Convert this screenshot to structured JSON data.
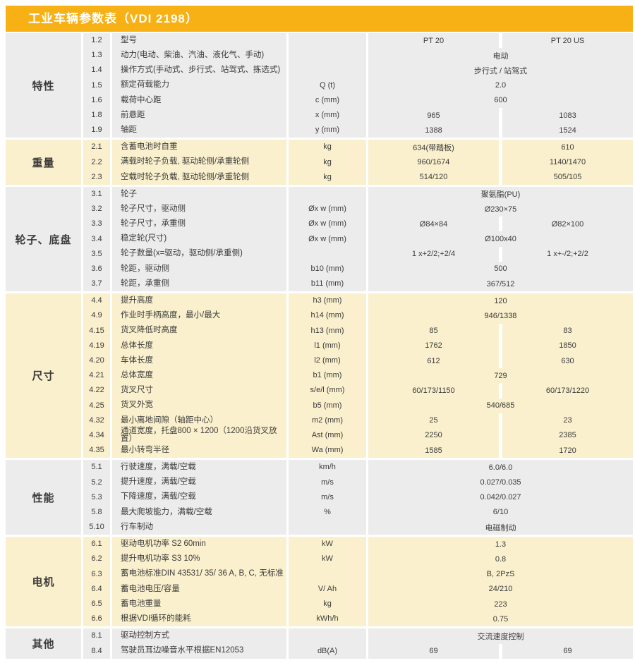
{
  "header": {
    "title": "工业车辆参数表（VDI 2198）"
  },
  "colors": {
    "accent": "#F8B115",
    "section_gray": "#ECECEC",
    "section_cream": "#FAF0CD",
    "text": "#3B3B3B"
  },
  "models": [
    "PT 20",
    "PT 20 US"
  ],
  "sections": [
    {
      "id": "texing",
      "label": "特性",
      "theme": "gray",
      "rows": [
        {
          "no": "1.2",
          "desc": "型号",
          "unit": "",
          "values": [
            "PT 20",
            "PT 20 US"
          ]
        },
        {
          "no": "1.3",
          "desc": "动力(电动、柴油、汽油、液化气、手动)",
          "unit": "",
          "span": "电动"
        },
        {
          "no": "1.4",
          "desc": "操作方式(手动式、步行式、站驾式、拣选式)",
          "unit": "",
          "span": "步行式 / 站驾式"
        },
        {
          "no": "1.5",
          "desc": "额定荷载能力",
          "unit": "Q (t)",
          "span": "2.0"
        },
        {
          "no": "1.6",
          "desc": "载荷中心距",
          "unit": "c (mm)",
          "span": "600"
        },
        {
          "no": "1.8",
          "desc": "前悬距",
          "unit": "x (mm)",
          "values": [
            "965",
            "1083"
          ]
        },
        {
          "no": "1.9",
          "desc": "轴距",
          "unit": "y (mm)",
          "values": [
            "1388",
            "1524"
          ]
        }
      ]
    },
    {
      "id": "zhongliang",
      "label": "重量",
      "theme": "cream",
      "rows": [
        {
          "no": "2.1",
          "desc": "含蓄电池时自重",
          "unit": "kg",
          "values": [
            "634(带踏板)",
            "610"
          ]
        },
        {
          "no": "2.2",
          "desc": "满载时轮子负载, 驱动轮侧/承重轮侧",
          "unit": "kg",
          "values": [
            "960/1674",
            "1140/1470"
          ]
        },
        {
          "no": "2.3",
          "desc": "空载时轮子负载, 驱动轮侧/承重轮侧",
          "unit": "kg",
          "values": [
            "514/120",
            "505/105"
          ]
        }
      ]
    },
    {
      "id": "lunzi-dipan",
      "label": "轮子、底盘",
      "theme": "gray",
      "rows": [
        {
          "no": "3.1",
          "desc": "轮子",
          "unit": "",
          "span": "聚氨酯(PU)"
        },
        {
          "no": "3.2",
          "desc": "轮子尺寸，驱动侧",
          "unit": "Øx w (mm)",
          "span": "Ø230×75"
        },
        {
          "no": "3.3",
          "desc": "轮子尺寸，承重侧",
          "unit": "Øx w (mm)",
          "values": [
            "Ø84×84",
            "Ø82×100"
          ]
        },
        {
          "no": "3.4",
          "desc": "稳定轮(尺寸)",
          "unit": "Øx w (mm)",
          "span": "Ø100x40"
        },
        {
          "no": "3.5",
          "desc": "轮子数量(x=驱动，驱动侧/承重侧)",
          "unit": "",
          "values": [
            "1 x+2/2;+2/4",
            "1 x+-/2;+2/2"
          ]
        },
        {
          "no": "3.6",
          "desc": "轮距，驱动侧",
          "unit": "b10 (mm)",
          "span": "500"
        },
        {
          "no": "3.7",
          "desc": "轮距，承重侧",
          "unit": "b11 (mm)",
          "span": "367/512"
        }
      ]
    },
    {
      "id": "chicun",
      "label": "尺寸",
      "theme": "cream",
      "rows": [
        {
          "no": "4.4",
          "desc": "提升高度",
          "unit": "h3 (mm)",
          "span": "120"
        },
        {
          "no": "4.9",
          "desc": "作业时手柄高度，最小/最大",
          "unit": "h14 (mm)",
          "span": "946/1338"
        },
        {
          "no": "4.15",
          "desc": "货叉降低时高度",
          "unit": "h13 (mm)",
          "values": [
            "85",
            "83"
          ]
        },
        {
          "no": "4.19",
          "desc": "总体长度",
          "unit": "l1 (mm)",
          "values": [
            "1762",
            "1850"
          ]
        },
        {
          "no": "4.20",
          "desc": "车体长度",
          "unit": "l2 (mm)",
          "values": [
            "612",
            "630"
          ]
        },
        {
          "no": "4.21",
          "desc": "总体宽度",
          "unit": "b1 (mm)",
          "span": "729"
        },
        {
          "no": "4.22",
          "desc": "货叉尺寸",
          "unit": "s/e/l (mm)",
          "values": [
            "60/173/1150",
            "60/173/1220"
          ]
        },
        {
          "no": "4.25",
          "desc": "货叉外宽",
          "unit": "b5 (mm)",
          "span": "540/685"
        },
        {
          "no": "4.32",
          "desc": "最小离地间隙（轴距中心）",
          "unit": "m2 (mm)",
          "values": [
            "25",
            "23"
          ]
        },
        {
          "no": "4.34",
          "desc": "通道宽度，托盘800 × 1200（1200沿货叉放置）",
          "unit": "Ast (mm)",
          "values": [
            "2250",
            "2385"
          ]
        },
        {
          "no": "4.35",
          "desc": "最小转弯半径",
          "unit": "Wa (mm)",
          "values": [
            "1585",
            "1720"
          ]
        }
      ]
    },
    {
      "id": "xingneng",
      "label": "性能",
      "theme": "gray",
      "rows": [
        {
          "no": "5.1",
          "desc": "行驶速度，满载/空载",
          "unit": "km/h",
          "span": "6.0/6.0"
        },
        {
          "no": "5.2",
          "desc": "提升速度，满载/空载",
          "unit": "m/s",
          "span": "0.027/0.035"
        },
        {
          "no": "5.3",
          "desc": "下降速度，满载/空载",
          "unit": "m/s",
          "span": "0.042/0.027"
        },
        {
          "no": "5.8",
          "desc": "最大爬坡能力，满载/空载",
          "unit": "%",
          "span": "6/10"
        },
        {
          "no": "5.10",
          "desc": "行车制动",
          "unit": "",
          "span": "电磁制动"
        }
      ]
    },
    {
      "id": "dianji",
      "label": "电机",
      "theme": "cream",
      "rows": [
        {
          "no": "6.1",
          "desc": "驱动电机功率 S2 60min",
          "unit": "kW",
          "span": "1.3"
        },
        {
          "no": "6.2",
          "desc": "提升电机功率 S3 10%",
          "unit": "kW",
          "span": "0.8"
        },
        {
          "no": "6.3",
          "desc": "蓄电池标准DIN 43531/ 35/ 36 A, B, C, 无标准",
          "unit": "",
          "span": "B, 2PzS"
        },
        {
          "no": "6.4",
          "desc": "蓄电池电压/容量",
          "unit": "V/ Ah",
          "span": "24/210"
        },
        {
          "no": "6.5",
          "desc": "蓄电池重量",
          "unit": "kg",
          "span": "223"
        },
        {
          "no": "6.6",
          "desc": "根据VDI循环的能耗",
          "unit": "kWh/h",
          "span": "0.75"
        }
      ]
    },
    {
      "id": "qita",
      "label": "其他",
      "theme": "gray",
      "rows": [
        {
          "no": "8.1",
          "desc": "驱动控制方式",
          "unit": "",
          "span": "交流速度控制"
        },
        {
          "no": "8.4",
          "desc": "驾驶员耳边噪音水平根据EN12053",
          "unit": "dB(A)",
          "values": [
            "69",
            "69"
          ]
        }
      ]
    }
  ]
}
